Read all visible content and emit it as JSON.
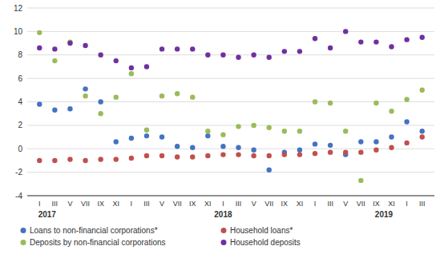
{
  "chart_data": {
    "type": "scatter",
    "categories": [
      "I",
      "III",
      "V",
      "VII",
      "IX",
      "XI",
      "I",
      "III",
      "V",
      "VII",
      "IX",
      "XI",
      "I",
      "III",
      "V",
      "VII",
      "IX",
      "XI",
      "I",
      "III",
      "V",
      "VII",
      "IX",
      "XI",
      "I",
      "III"
    ],
    "annotations": [
      "2017",
      "2018",
      "2019"
    ],
    "series": [
      {
        "name": "Loans to non-financial corporations*",
        "color": "#4472C4",
        "marker": "circle",
        "values": [
          3.8,
          3.3,
          3.4,
          5.1,
          4.0,
          0.6,
          0.9,
          1.1,
          1.0,
          0.2,
          0.1,
          1.1,
          0.2,
          0.1,
          -0.1,
          -1.8,
          -0.3,
          -0.1,
          0.4,
          0.3,
          -0.5,
          0.6,
          0.6,
          1.0,
          2.3,
          1.5
        ]
      },
      {
        "name": "Household loans*",
        "color": "#C0504D",
        "marker": "circle",
        "values": [
          -1.0,
          -1.0,
          -0.9,
          -1.0,
          -0.9,
          -0.9,
          -0.8,
          -0.6,
          -0.6,
          -0.7,
          -0.7,
          -0.6,
          -0.5,
          -0.5,
          -0.6,
          -0.6,
          -0.5,
          -0.5,
          -0.4,
          -0.3,
          -0.3,
          -0.3,
          -0.1,
          0.1,
          0.5,
          1.0
        ]
      },
      {
        "name": "Deposits by non-financial corporations",
        "color": "#9BBB59",
        "marker": "circle",
        "values": [
          9.9,
          7.5,
          9.1,
          4.5,
          3.0,
          4.4,
          6.4,
          1.6,
          4.5,
          4.7,
          4.4,
          1.5,
          1.2,
          1.9,
          2.0,
          1.8,
          1.5,
          1.5,
          4.0,
          3.9,
          1.5,
          -2.7,
          3.9,
          3.2,
          4.2,
          5.0
        ]
      },
      {
        "name": "Household deposits",
        "color": "#7030A0",
        "marker": "circle",
        "values": [
          8.6,
          8.5,
          9.0,
          8.8,
          8.0,
          7.5,
          6.9,
          7.0,
          8.5,
          8.5,
          8.5,
          8.0,
          8.0,
          7.8,
          8.0,
          7.8,
          8.3,
          8.3,
          9.4,
          8.6,
          10.0,
          9.1,
          9.1,
          8.7,
          9.3,
          9.5
        ]
      }
    ],
    "ylim": [
      -4,
      12
    ],
    "yticks": [
      -4,
      -2,
      0,
      2,
      4,
      6,
      8,
      10,
      12
    ],
    "grid": true,
    "legend": "bottom"
  }
}
